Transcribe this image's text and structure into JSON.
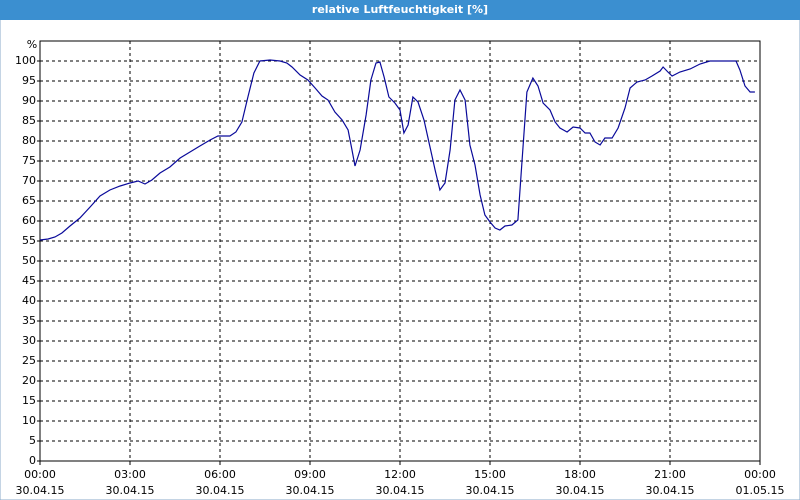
{
  "chart_data": {
    "type": "line",
    "title": "relative Luftfeuchtigkeit [%]",
    "y_label": "%",
    "xlim": [
      0,
      24
    ],
    "ylim": [
      0,
      105
    ],
    "xticks": [
      {
        "value": 0,
        "label": "00:00"
      },
      {
        "value": 3,
        "label": "03:00"
      },
      {
        "value": 6,
        "label": "06:00"
      },
      {
        "value": 9,
        "label": "09:00"
      },
      {
        "value": 12,
        "label": "12:00"
      },
      {
        "value": 15,
        "label": "15:00"
      },
      {
        "value": 18,
        "label": "18:00"
      },
      {
        "value": 21,
        "label": "21:00"
      },
      {
        "value": 24,
        "label": "00:00"
      }
    ],
    "xtick_dates": [
      "30.04.15",
      "30.04.15",
      "30.04.15",
      "30.04.15",
      "30.04.15",
      "30.04.15",
      "30.04.15",
      "30.04.15",
      "01.05.15"
    ],
    "yticks": [
      0,
      5,
      10,
      15,
      20,
      25,
      30,
      35,
      40,
      45,
      50,
      55,
      60,
      65,
      70,
      75,
      80,
      85,
      90,
      95,
      100
    ],
    "grid": true,
    "series": [
      {
        "color": "#0a0a9a",
        "x": [
          0,
          0.27,
          0.5,
          0.73,
          1,
          1.33,
          1.67,
          2,
          2.33,
          2.67,
          3,
          3.27,
          3.5,
          3.73,
          4,
          4.33,
          4.67,
          5,
          5.33,
          5.67,
          5.93,
          6.33,
          6.53,
          6.73,
          6.93,
          7.13,
          7.33,
          7.67,
          8,
          8.23,
          8.4,
          8.67,
          8.93,
          9.17,
          9.4,
          9.6,
          9.83,
          10.07,
          10.27,
          10.4,
          10.5,
          10.67,
          10.87,
          11.03,
          11.2,
          11.33,
          11.47,
          11.63,
          11.83,
          12,
          12.13,
          12.27,
          12.43,
          12.6,
          12.8,
          13,
          13.17,
          13.33,
          13.5,
          13.67,
          13.83,
          14,
          14.17,
          14.33,
          14.5,
          14.67,
          14.83,
          15,
          15.17,
          15.33,
          15.5,
          15.73,
          15.93,
          16.07,
          16.23,
          16.43,
          16.6,
          16.77,
          17,
          17.17,
          17.33,
          17.57,
          17.77,
          18,
          18.17,
          18.33,
          18.5,
          18.67,
          18.83,
          19.07,
          19.27,
          19.5,
          19.67,
          19.9,
          20.17,
          20.4,
          20.67,
          20.77,
          20.93,
          21.07,
          21.33,
          21.67,
          22,
          22.33,
          22.67,
          23.2,
          23.33,
          23.5,
          23.67,
          23.83
        ],
        "values": [
          55.25,
          55.5,
          56,
          57,
          58.75,
          60.75,
          63.5,
          66.25,
          67.75,
          68.75,
          69.5,
          70,
          69.25,
          70.25,
          72,
          73.5,
          75.75,
          77.25,
          78.75,
          80.25,
          81.25,
          81.25,
          82.25,
          84.75,
          91,
          97,
          100,
          100.25,
          100,
          99.5,
          98.5,
          96.5,
          95.25,
          93.25,
          91.25,
          90.25,
          87.25,
          85.25,
          82.75,
          77.75,
          73.75,
          77.75,
          86.5,
          95.25,
          99.5,
          99.75,
          96,
          91,
          89.5,
          87.75,
          82,
          84,
          91,
          89.75,
          85.25,
          78.5,
          72.75,
          67.75,
          69.5,
          77.75,
          90.25,
          92.75,
          90.25,
          79,
          74,
          66.5,
          61.5,
          59.75,
          58.25,
          57.75,
          58.75,
          59,
          60.25,
          75.25,
          92.25,
          95.75,
          93.75,
          89.5,
          87.75,
          84.75,
          83.25,
          82.25,
          83.5,
          83.25,
          82,
          82,
          79.75,
          79,
          80.75,
          80.75,
          83.25,
          88.25,
          93.25,
          94.75,
          95.25,
          96.25,
          97.5,
          98.5,
          97.25,
          96.25,
          97.25,
          98,
          99.25,
          100,
          100,
          100,
          97.75,
          93.75,
          92.25,
          92.25
        ]
      }
    ]
  }
}
